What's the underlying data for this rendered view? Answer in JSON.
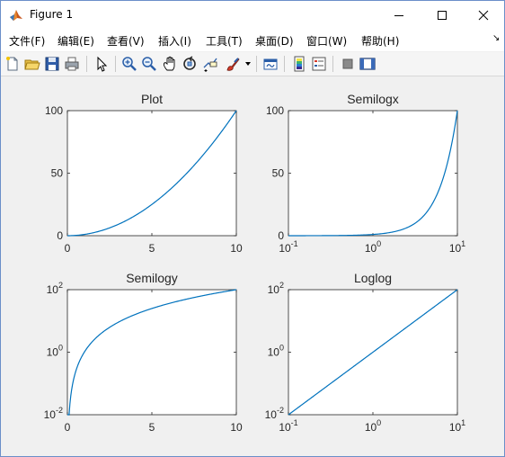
{
  "window": {
    "title": "Figure 1"
  },
  "menu": {
    "items": [
      "文件(F)",
      "编辑(E)",
      "查看(V)",
      "插入(I)",
      "工具(T)",
      "桌面(D)",
      "窗口(W)",
      "帮助(H)"
    ]
  },
  "toolbar": {
    "icons": [
      "new-figure-icon",
      "open-file-icon",
      "save-icon",
      "print-icon",
      "edit-plot-icon",
      "zoom-in-icon",
      "zoom-out-icon",
      "pan-icon",
      "rotate-3d-icon",
      "data-cursor-icon",
      "brush-icon",
      "link-plot-icon",
      "colorbar-icon",
      "legend-icon",
      "hide-plot-tools-icon",
      "show-plot-tools-icon"
    ]
  },
  "colors": {
    "line": "#0072BD",
    "axes": "#262626"
  },
  "chart_data": [
    {
      "type": "line",
      "title": "Plot",
      "xscale": "linear",
      "yscale": "linear",
      "xlim": [
        0,
        10
      ],
      "ylim": [
        0,
        100
      ],
      "xticks": [
        {
          "v": 0,
          "label": "0"
        },
        {
          "v": 5,
          "label": "5"
        },
        {
          "v": 10,
          "label": "10"
        }
      ],
      "yticks": [
        {
          "v": 0,
          "label": "0"
        },
        {
          "v": 50,
          "label": "50"
        },
        {
          "v": 100,
          "label": "100"
        }
      ],
      "function": "y = x^2",
      "x": [
        0,
        1,
        2,
        3,
        4,
        5,
        6,
        7,
        8,
        9,
        10
      ],
      "y": [
        0,
        1,
        4,
        9,
        16,
        25,
        36,
        49,
        64,
        81,
        100
      ]
    },
    {
      "type": "line",
      "title": "Semilogx",
      "xscale": "log",
      "yscale": "linear",
      "xlim": [
        0.1,
        10
      ],
      "ylim": [
        0,
        100
      ],
      "xticks": [
        {
          "v": 0.1,
          "base": "10",
          "exp": "-1"
        },
        {
          "v": 1,
          "base": "10",
          "exp": "0"
        },
        {
          "v": 10,
          "base": "10",
          "exp": "1"
        }
      ],
      "yticks": [
        {
          "v": 0,
          "label": "0"
        },
        {
          "v": 50,
          "label": "50"
        },
        {
          "v": 100,
          "label": "100"
        }
      ],
      "function": "y = x^2",
      "x": [
        0.1,
        0.5,
        1,
        2,
        3,
        4,
        5,
        6,
        7,
        8,
        9,
        10
      ],
      "y": [
        0.01,
        0.25,
        1,
        4,
        9,
        16,
        25,
        36,
        49,
        64,
        81,
        100
      ]
    },
    {
      "type": "line",
      "title": "Semilogy",
      "xscale": "linear",
      "yscale": "log",
      "xlim": [
        0,
        10
      ],
      "ylim": [
        0.01,
        100
      ],
      "xticks": [
        {
          "v": 0,
          "label": "0"
        },
        {
          "v": 5,
          "label": "5"
        },
        {
          "v": 10,
          "label": "10"
        }
      ],
      "yticks": [
        {
          "v": 0.01,
          "base": "10",
          "exp": "-2"
        },
        {
          "v": 1,
          "base": "10",
          "exp": "0"
        },
        {
          "v": 100,
          "base": "10",
          "exp": "2"
        }
      ],
      "function": "y = x^2",
      "x": [
        0.1,
        0.5,
        1,
        2,
        3,
        4,
        5,
        6,
        7,
        8,
        9,
        10
      ],
      "y": [
        0.01,
        0.25,
        1,
        4,
        9,
        16,
        25,
        36,
        49,
        64,
        81,
        100
      ]
    },
    {
      "type": "line",
      "title": "Loglog",
      "xscale": "log",
      "yscale": "log",
      "xlim": [
        0.1,
        10
      ],
      "ylim": [
        0.01,
        100
      ],
      "xticks": [
        {
          "v": 0.1,
          "base": "10",
          "exp": "-1"
        },
        {
          "v": 1,
          "base": "10",
          "exp": "0"
        },
        {
          "v": 10,
          "base": "10",
          "exp": "1"
        }
      ],
      "yticks": [
        {
          "v": 0.01,
          "base": "10",
          "exp": "-2"
        },
        {
          "v": 1,
          "base": "10",
          "exp": "0"
        },
        {
          "v": 100,
          "base": "10",
          "exp": "2"
        }
      ],
      "function": "y = x^2",
      "x": [
        0.1,
        1,
        10
      ],
      "y": [
        0.01,
        1,
        100
      ]
    }
  ]
}
